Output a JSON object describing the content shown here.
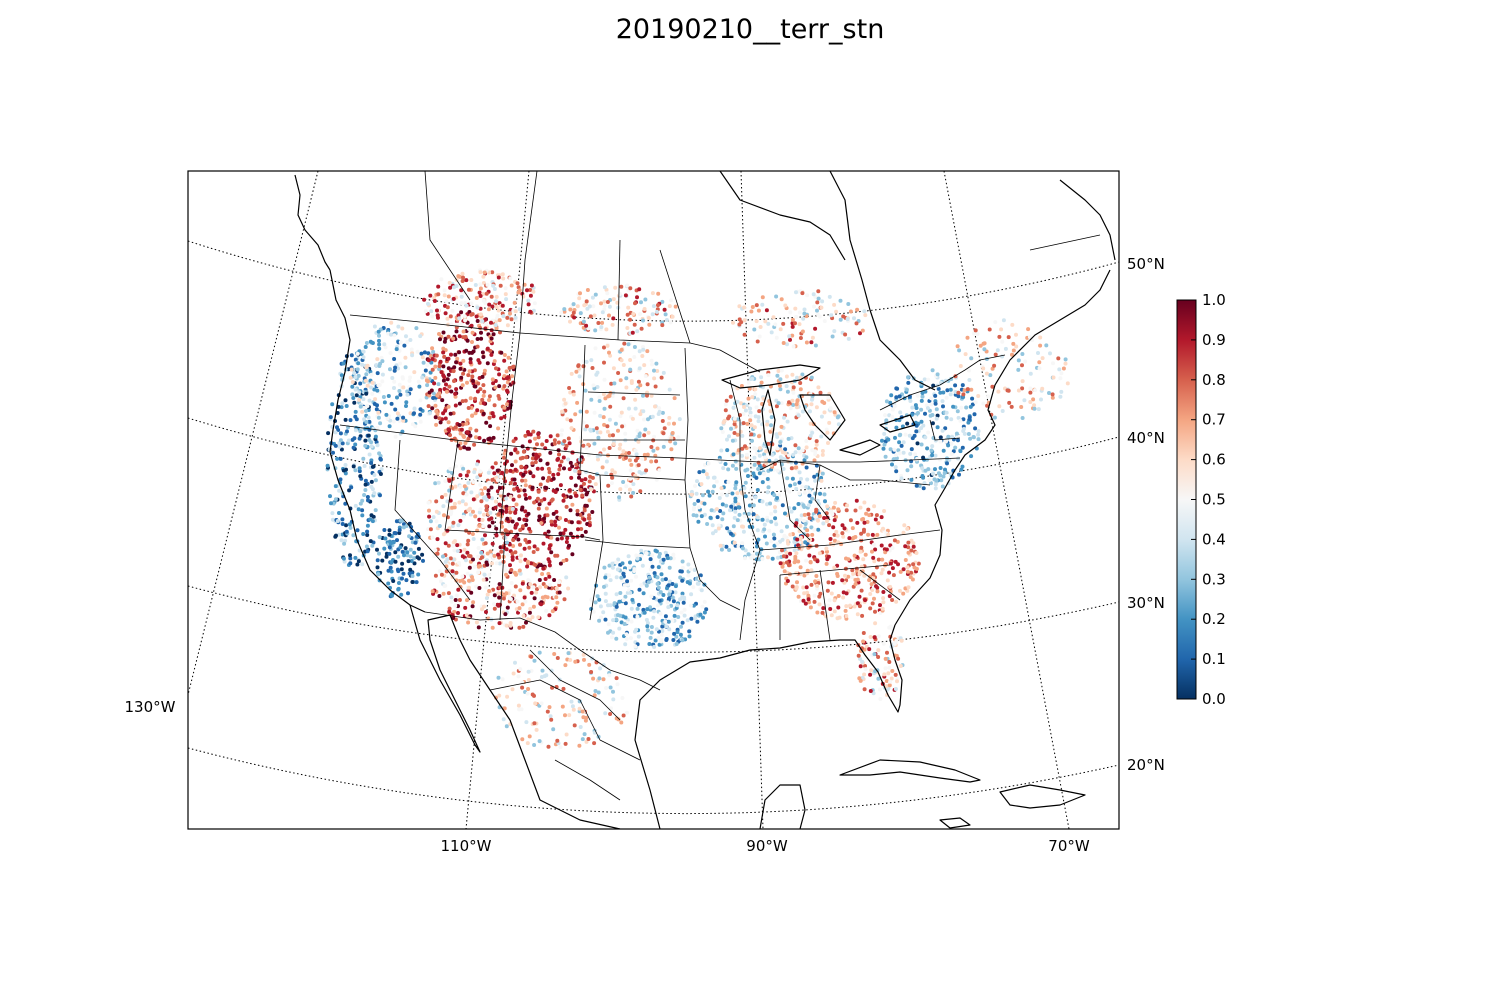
{
  "title": "20190210__terr_stn",
  "map": {
    "projection": "Lambert Conformal (CONUS)",
    "lon_labels": [
      "130°W",
      "110°W",
      "90°W",
      "70°W"
    ],
    "lat_labels": [
      "50°N",
      "40°N",
      "30°N",
      "20°N"
    ],
    "coastline_color": "#000000",
    "gridline_style": "dotted"
  },
  "colorbar": {
    "colormap": "RdBu_r",
    "min": 0.0,
    "max": 1.0,
    "tick_labels": [
      "0.0",
      "0.1",
      "0.2",
      "0.3",
      "0.4",
      "0.5",
      "0.6",
      "0.7",
      "0.8",
      "0.9",
      "1.0"
    ],
    "colors": [
      "#053061",
      "#2166ac",
      "#4393c3",
      "#92c5de",
      "#d1e5f0",
      "#f7f7f7",
      "#fddbc7",
      "#f4a582",
      "#d6604d",
      "#b2182b",
      "#67001f"
    ]
  },
  "chart_data": {
    "type": "scatter",
    "title": "20190210__terr_stn",
    "description_value_range": [
      0.0,
      1.0
    ],
    "regional_value_pattern": [
      {
        "region": "Pacific coast / California",
        "typical_value": 0.15
      },
      {
        "region": "Northern Rockies (Idaho, Montana)",
        "typical_value": 0.85
      },
      {
        "region": "Colorado / Utah Rockies",
        "typical_value": 0.9
      },
      {
        "region": "Arizona / New Mexico",
        "typical_value": 0.7
      },
      {
        "region": "Great Plains",
        "typical_value": 0.5
      },
      {
        "region": "Texas / Oklahoma",
        "typical_value": 0.3
      },
      {
        "region": "Midwest / Ohio Valley",
        "typical_value": 0.35
      },
      {
        "region": "Southeast",
        "typical_value": 0.7
      },
      {
        "region": "Northeast",
        "typical_value": 0.3
      },
      {
        "region": "Upper Midwest / Great Lakes",
        "typical_value": 0.55
      }
    ]
  }
}
